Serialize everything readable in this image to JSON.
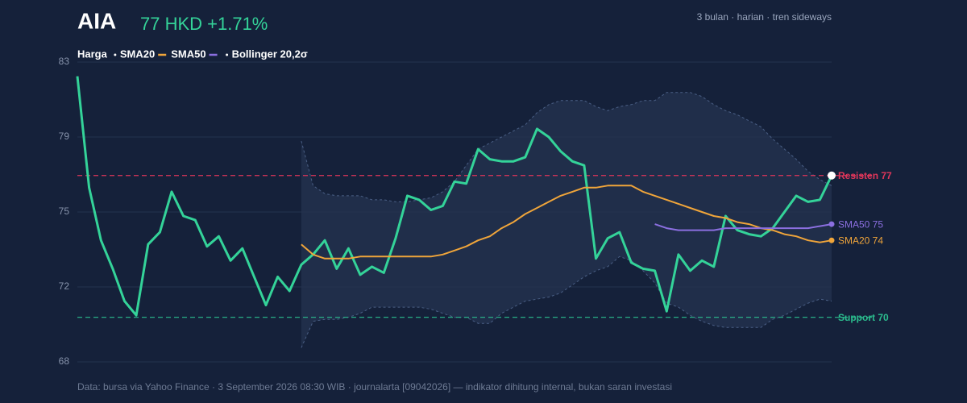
{
  "chart_data": {
    "type": "line",
    "title": "AIA",
    "price_label": "77 HKD +1.71%",
    "subtitle": "3 bulan · harian · tren sideways",
    "footer": "Data: bursa via Yahoo Finance · 3 September 2026 08:30 WIB · journalarta [09042026] — indikator dihitung internal, bukan saran investasi",
    "ylim": [
      67.8,
      82.6
    ],
    "yticks": [
      {
        "value": 67.8,
        "label": "68"
      },
      {
        "value": 71.5,
        "label": "72"
      },
      {
        "value": 75.2,
        "label": "75"
      },
      {
        "value": 78.9,
        "label": "79"
      },
      {
        "value": 82.6,
        "label": "83"
      }
    ],
    "grid": true,
    "series": [
      {
        "name": "Harga",
        "color": "#34d399",
        "values": [
          81.9,
          76.4,
          73.8,
          72.4,
          70.8,
          70.1,
          73.6,
          74.2,
          76.2,
          75.0,
          74.8,
          73.5,
          74.0,
          72.8,
          73.4,
          72.0,
          70.6,
          72.0,
          71.3,
          72.6,
          73.1,
          73.8,
          72.4,
          73.4,
          72.1,
          72.5,
          72.2,
          73.9,
          76.0,
          75.8,
          75.3,
          75.5,
          76.7,
          76.6,
          78.3,
          77.8,
          77.7,
          77.7,
          77.9,
          79.3,
          78.9,
          78.2,
          77.7,
          77.5,
          72.9,
          73.9,
          74.2,
          72.7,
          72.4,
          72.3,
          70.3,
          73.1,
          72.3,
          72.8,
          72.5,
          75.0,
          74.3,
          74.1,
          74.0,
          74.4,
          75.2,
          76.0,
          75.7,
          75.8,
          77.0
        ]
      },
      {
        "name": "SMA20",
        "color": "#f0a53a",
        "end_label": "SMA20 74",
        "values": [
          null,
          null,
          null,
          null,
          null,
          null,
          null,
          null,
          null,
          null,
          null,
          null,
          null,
          null,
          null,
          null,
          null,
          null,
          null,
          73.6,
          73.1,
          72.9,
          72.9,
          72.9,
          73.0,
          73.0,
          73.0,
          73.0,
          73.0,
          73.0,
          73.0,
          73.1,
          73.3,
          73.5,
          73.8,
          74.0,
          74.4,
          74.7,
          75.1,
          75.4,
          75.7,
          76.0,
          76.2,
          76.4,
          76.4,
          76.5,
          76.5,
          76.5,
          76.2,
          76.0,
          75.8,
          75.6,
          75.4,
          75.2,
          75.0,
          74.9,
          74.7,
          74.6,
          74.4,
          74.3,
          74.1,
          74.0,
          73.8,
          73.7,
          73.8
        ]
      },
      {
        "name": "SMA50",
        "color": "#8b6fe0",
        "end_label": "SMA50 75",
        "values": [
          null,
          null,
          null,
          null,
          null,
          null,
          null,
          null,
          null,
          null,
          null,
          null,
          null,
          null,
          null,
          null,
          null,
          null,
          null,
          null,
          null,
          null,
          null,
          null,
          null,
          null,
          null,
          null,
          null,
          null,
          null,
          null,
          null,
          null,
          null,
          null,
          null,
          null,
          null,
          null,
          null,
          null,
          null,
          null,
          null,
          null,
          null,
          null,
          null,
          74.6,
          74.4,
          74.3,
          74.3,
          74.3,
          74.3,
          74.4,
          74.4,
          74.4,
          74.4,
          74.4,
          74.4,
          74.4,
          74.4,
          74.5,
          74.6
        ]
      },
      {
        "name": "Bollinger 20,2σ",
        "color": "#4a5f85",
        "upper": [
          null,
          null,
          null,
          null,
          null,
          null,
          null,
          null,
          null,
          null,
          null,
          null,
          null,
          null,
          null,
          null,
          null,
          null,
          null,
          78.7,
          76.5,
          76.1,
          76.0,
          76.0,
          76.0,
          75.8,
          75.8,
          75.7,
          75.7,
          75.8,
          75.9,
          76.2,
          76.7,
          77.5,
          78.3,
          78.6,
          78.9,
          79.2,
          79.5,
          80.1,
          80.5,
          80.7,
          80.7,
          80.7,
          80.4,
          80.2,
          80.4,
          80.5,
          80.7,
          80.7,
          81.1,
          81.1,
          81.1,
          80.9,
          80.5,
          80.2,
          80.0,
          79.7,
          79.4,
          78.8,
          78.3,
          77.8,
          77.2,
          76.8,
          76.5
        ],
        "lower": [
          null,
          null,
          null,
          null,
          null,
          null,
          null,
          null,
          null,
          null,
          null,
          null,
          null,
          null,
          null,
          null,
          null,
          null,
          null,
          68.5,
          69.8,
          69.9,
          69.9,
          70.0,
          70.2,
          70.5,
          70.5,
          70.5,
          70.5,
          70.5,
          70.4,
          70.2,
          70.0,
          70.0,
          69.7,
          69.7,
          70.2,
          70.5,
          70.8,
          70.9,
          71.0,
          71.2,
          71.6,
          72.0,
          72.3,
          72.5,
          73.0,
          72.8,
          72.3,
          71.7,
          70.7,
          70.5,
          70.1,
          69.8,
          69.6,
          69.5,
          69.5,
          69.5,
          69.5,
          69.9,
          70.1,
          70.4,
          70.7,
          70.9,
          70.8
        ]
      }
    ],
    "levels": [
      {
        "label": "Resisten 77",
        "value": 77,
        "color": "#e0365a"
      },
      {
        "label": "Support 70",
        "value": 70,
        "color": "#2bbd8e"
      }
    ]
  }
}
